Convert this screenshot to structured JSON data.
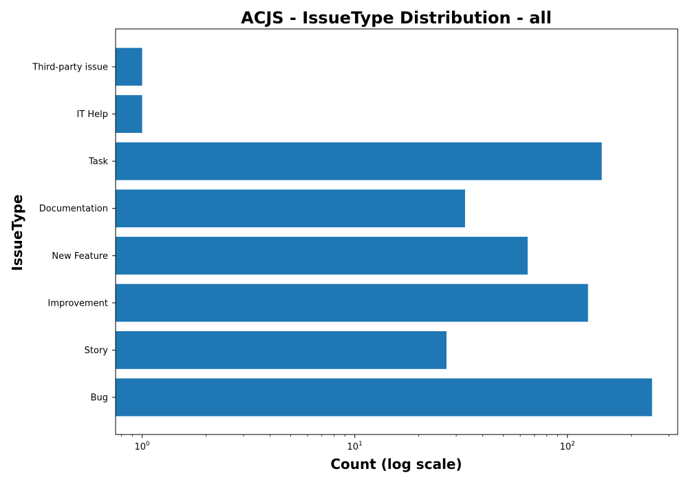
{
  "chart_data": {
    "type": "bar",
    "orientation": "horizontal",
    "title": "ACJS - IssueType Distribution - all",
    "xlabel": "Count (log scale)",
    "ylabel": "IssueType",
    "xscale": "log",
    "xlim": [
      0.75,
      330
    ],
    "xticks": [
      1,
      10,
      100
    ],
    "xtick_labels": [
      {
        "base": "10",
        "exp": "0"
      },
      {
        "base": "10",
        "exp": "1"
      },
      {
        "base": "10",
        "exp": "2"
      }
    ],
    "categories": [
      "Bug",
      "Story",
      "Improvement",
      "New Feature",
      "Documentation",
      "Task",
      "IT Help",
      "Third-party issue"
    ],
    "values": [
      250,
      27,
      125,
      65,
      33,
      145,
      1,
      1
    ],
    "grid": false,
    "colors": {
      "bar": "#1f77b4",
      "axis": "#000000",
      "background": "#ffffff"
    }
  }
}
